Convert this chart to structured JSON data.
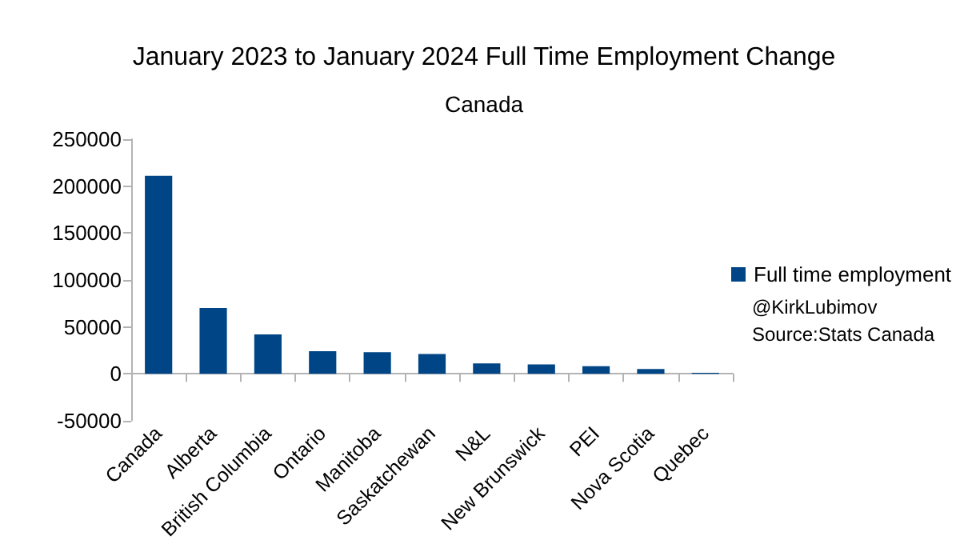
{
  "chart_data": {
    "type": "bar",
    "title": "January 2023 to January 2024 Full Time Employment Change",
    "subtitle": "Canada",
    "categories": [
      "Canada",
      "Alberta",
      "British Columbia",
      "Ontario",
      "Manitoba",
      "Saskatchewan",
      "N&L",
      "New Brunswick",
      "PEI",
      "Nova Scotia",
      "Quebec"
    ],
    "series": [
      {
        "name": "Full time employment",
        "color": "#004586",
        "values": [
          211000,
          70000,
          42000,
          24000,
          23000,
          21000,
          11000,
          10000,
          8000,
          5000,
          1000
        ]
      }
    ],
    "ylim": [
      -50000,
      250000
    ],
    "yticks": [
      -50000,
      0,
      50000,
      100000,
      150000,
      200000,
      250000
    ],
    "grid": false,
    "legend": "right",
    "annotations": [
      "@KirkLubimov",
      "Source:Stats Canada"
    ]
  }
}
